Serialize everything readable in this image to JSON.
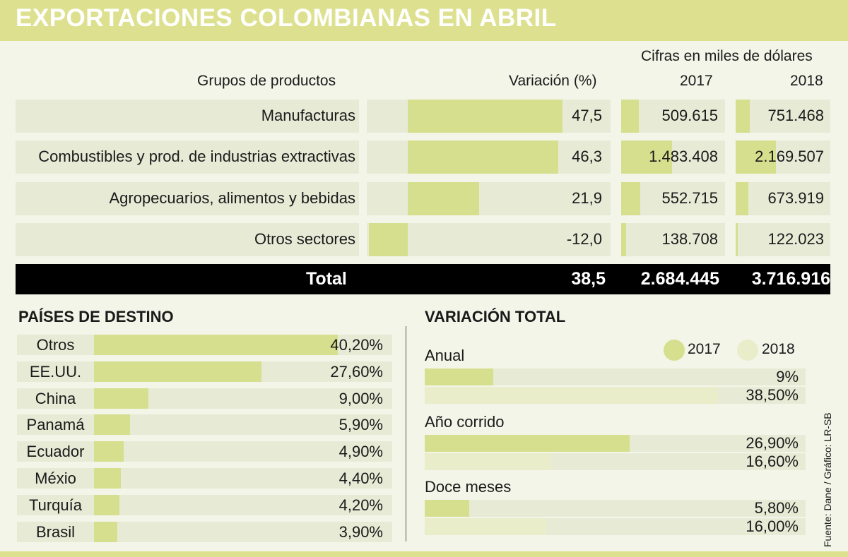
{
  "title": "EXPORTACIONES COLOMBIANAS EN ABRIL",
  "unit_note": "Cifras en miles de dólares",
  "colors": {
    "band": "#dde18f",
    "bar_2017": "#d6df8e",
    "bar_2018": "#eaedca",
    "cell_bg": "#e7ebd6"
  },
  "chart_data": [
    {
      "type": "table",
      "headers": {
        "group": "Grupos de productos",
        "variation": "Variación (%)",
        "y2017": "2017",
        "y2018": "2018"
      },
      "rows": [
        {
          "label": "Manufacturas",
          "variation": 47.5,
          "variation_text": "47,5",
          "v2017": 509615,
          "v2017_text": "509.615",
          "v2018": 751468,
          "v2018_text": "751.468"
        },
        {
          "label": "Combustibles y prod. de industrias extractivas",
          "variation": 46.3,
          "variation_text": "46,3",
          "v2017": 1483408,
          "v2017_text": "1.483.408",
          "v2018": 2169507,
          "v2018_text": "2.169.507"
        },
        {
          "label": "Agropecuarios, alimentos y bebidas",
          "variation": 21.9,
          "variation_text": "21,9",
          "v2017": 552715,
          "v2017_text": "552.715",
          "v2018": 673919,
          "v2018_text": "673.919"
        },
        {
          "label": "Otros sectores",
          "variation": -12.0,
          "variation_text": "-12,0",
          "v2017": 138708,
          "v2017_text": "138.708",
          "v2018": 122023,
          "v2018_text": "122.023"
        }
      ],
      "total": {
        "label": "Total",
        "variation_text": "38,5",
        "v2017_text": "2.684.445",
        "v2018_text": "3.716.916"
      }
    },
    {
      "type": "bar",
      "title": "PAÍSES DE DESTINO",
      "categories": [
        "Otros",
        "EE.UU.",
        "China",
        "Panamá",
        "Ecuador",
        "Méxio",
        "Turquía",
        "Brasil"
      ],
      "values": [
        40.2,
        27.6,
        9.0,
        5.9,
        4.9,
        4.4,
        4.2,
        3.9
      ],
      "value_labels": [
        "40,20%",
        "27,60%",
        "9,00%",
        "5,90%",
        "4,90%",
        "4,40%",
        "4,20%",
        "3,90%"
      ]
    },
    {
      "type": "bar",
      "title": "VARIACIÓN TOTAL",
      "legend": [
        "2017",
        "2018"
      ],
      "groups": [
        {
          "name": "Anual",
          "v2017": 9,
          "v2017_label": "9%",
          "v2018": 38.5,
          "v2018_label": "38,50%"
        },
        {
          "name": "Año corrido",
          "v2017": 26.9,
          "v2017_label": "26,90%",
          "v2018": 16.6,
          "v2018_label": "16,60%"
        },
        {
          "name": "Doce meses",
          "v2017": 5.8,
          "v2017_label": "5,80%",
          "v2018": 16.0,
          "v2018_label": "16,00%"
        }
      ]
    }
  ],
  "source": "Fuente: Dane / Gráfico: LR-SB"
}
